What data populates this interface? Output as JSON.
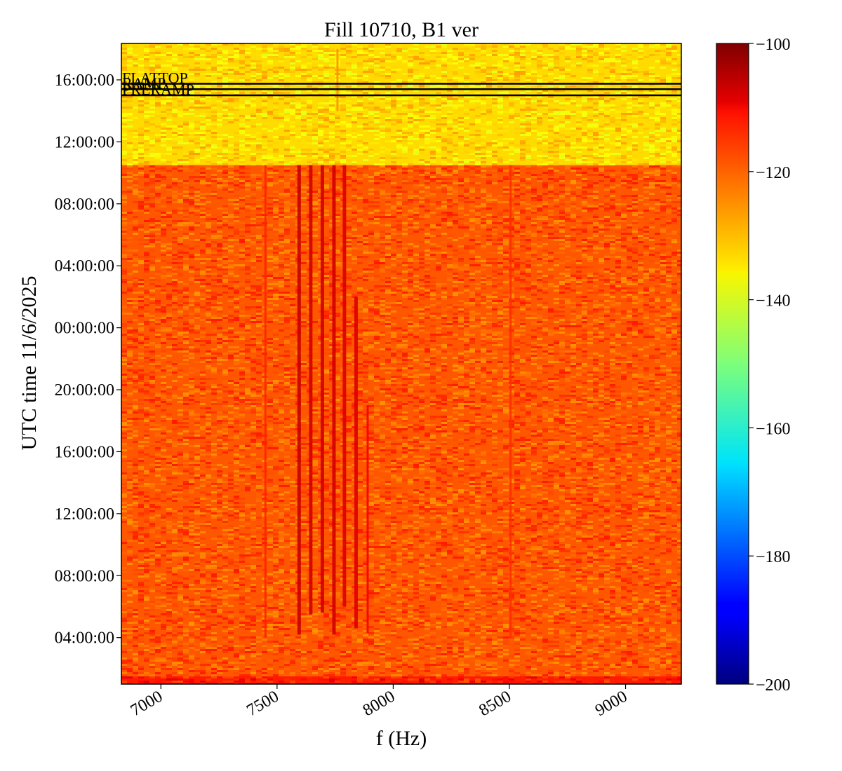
{
  "chart_data": {
    "type": "heatmap",
    "title": "Fill 10710, B1 ver",
    "xlabel": "f (Hz)",
    "ylabel": "UTC time 11/6/2025",
    "xlim": [
      6830,
      9240
    ],
    "x_ticks": [
      7000,
      7500,
      8000,
      8500,
      9000
    ],
    "x_tick_labels": [
      "7000",
      "7500",
      "8000",
      "8500",
      "9000"
    ],
    "y_axis_kind": "time, hours (elapsed, oldest at bottom)",
    "ylim": [
      -3.0,
      38.35
    ],
    "y_ticks": [
      0,
      4,
      8,
      12,
      16,
      20,
      24,
      28,
      32,
      36
    ],
    "y_tick_labels": [
      "04:00:00",
      "08:00:00",
      "12:00:00",
      "16:00:00",
      "20:00:00",
      "00:00:00",
      "04:00:00",
      "08:00:00",
      "12:00:00",
      "16:00:00"
    ],
    "colorbar": {
      "colormap": "jet",
      "range": [
        -200,
        -100
      ],
      "ticks": [
        -200,
        -180,
        -160,
        -140,
        -120,
        -100
      ],
      "tick_labels": [
        "−200",
        "−180",
        "−160",
        "−140",
        "−120",
        "−100"
      ]
    },
    "regions": [
      {
        "t_start": -3.0,
        "t_end": -2.5,
        "mean_level": -115
      },
      {
        "t_start": -2.5,
        "t_end": 30.5,
        "mean_level": -121
      },
      {
        "t_start": 30.5,
        "t_end": 38.35,
        "mean_level": -134
      }
    ],
    "spectral_lines": [
      {
        "f": 7595,
        "t_start": 0.2,
        "t_end": 30.5,
        "level": -107
      },
      {
        "f": 7645,
        "t_start": 1.5,
        "t_end": 30.5,
        "level": -108
      },
      {
        "f": 7695,
        "t_start": 1.6,
        "t_end": 30.5,
        "level": -108
      },
      {
        "f": 7745,
        "t_start": 0.2,
        "t_end": 30.5,
        "level": -108
      },
      {
        "f": 7790,
        "t_start": 2.0,
        "t_end": 30.5,
        "level": -109
      },
      {
        "f": 7840,
        "t_start": 0.6,
        "t_end": 22.0,
        "level": -109
      },
      {
        "f": 7890,
        "t_start": 0.3,
        "t_end": 15.0,
        "level": -112
      },
      {
        "f": 7450,
        "t_start": 0.0,
        "t_end": 30.5,
        "level": -116
      },
      {
        "f": 8505,
        "t_start": 0.0,
        "t_end": 30.5,
        "level": -117
      },
      {
        "f": 7760,
        "t_start": 34.0,
        "t_end": 38.0,
        "level": -127
      }
    ],
    "markers": [
      {
        "label": "FLATTOP",
        "t": 35.75
      },
      {
        "label": "RAMP",
        "t": 35.4
      },
      {
        "label": "PRERAMP",
        "t": 35.0
      }
    ]
  }
}
